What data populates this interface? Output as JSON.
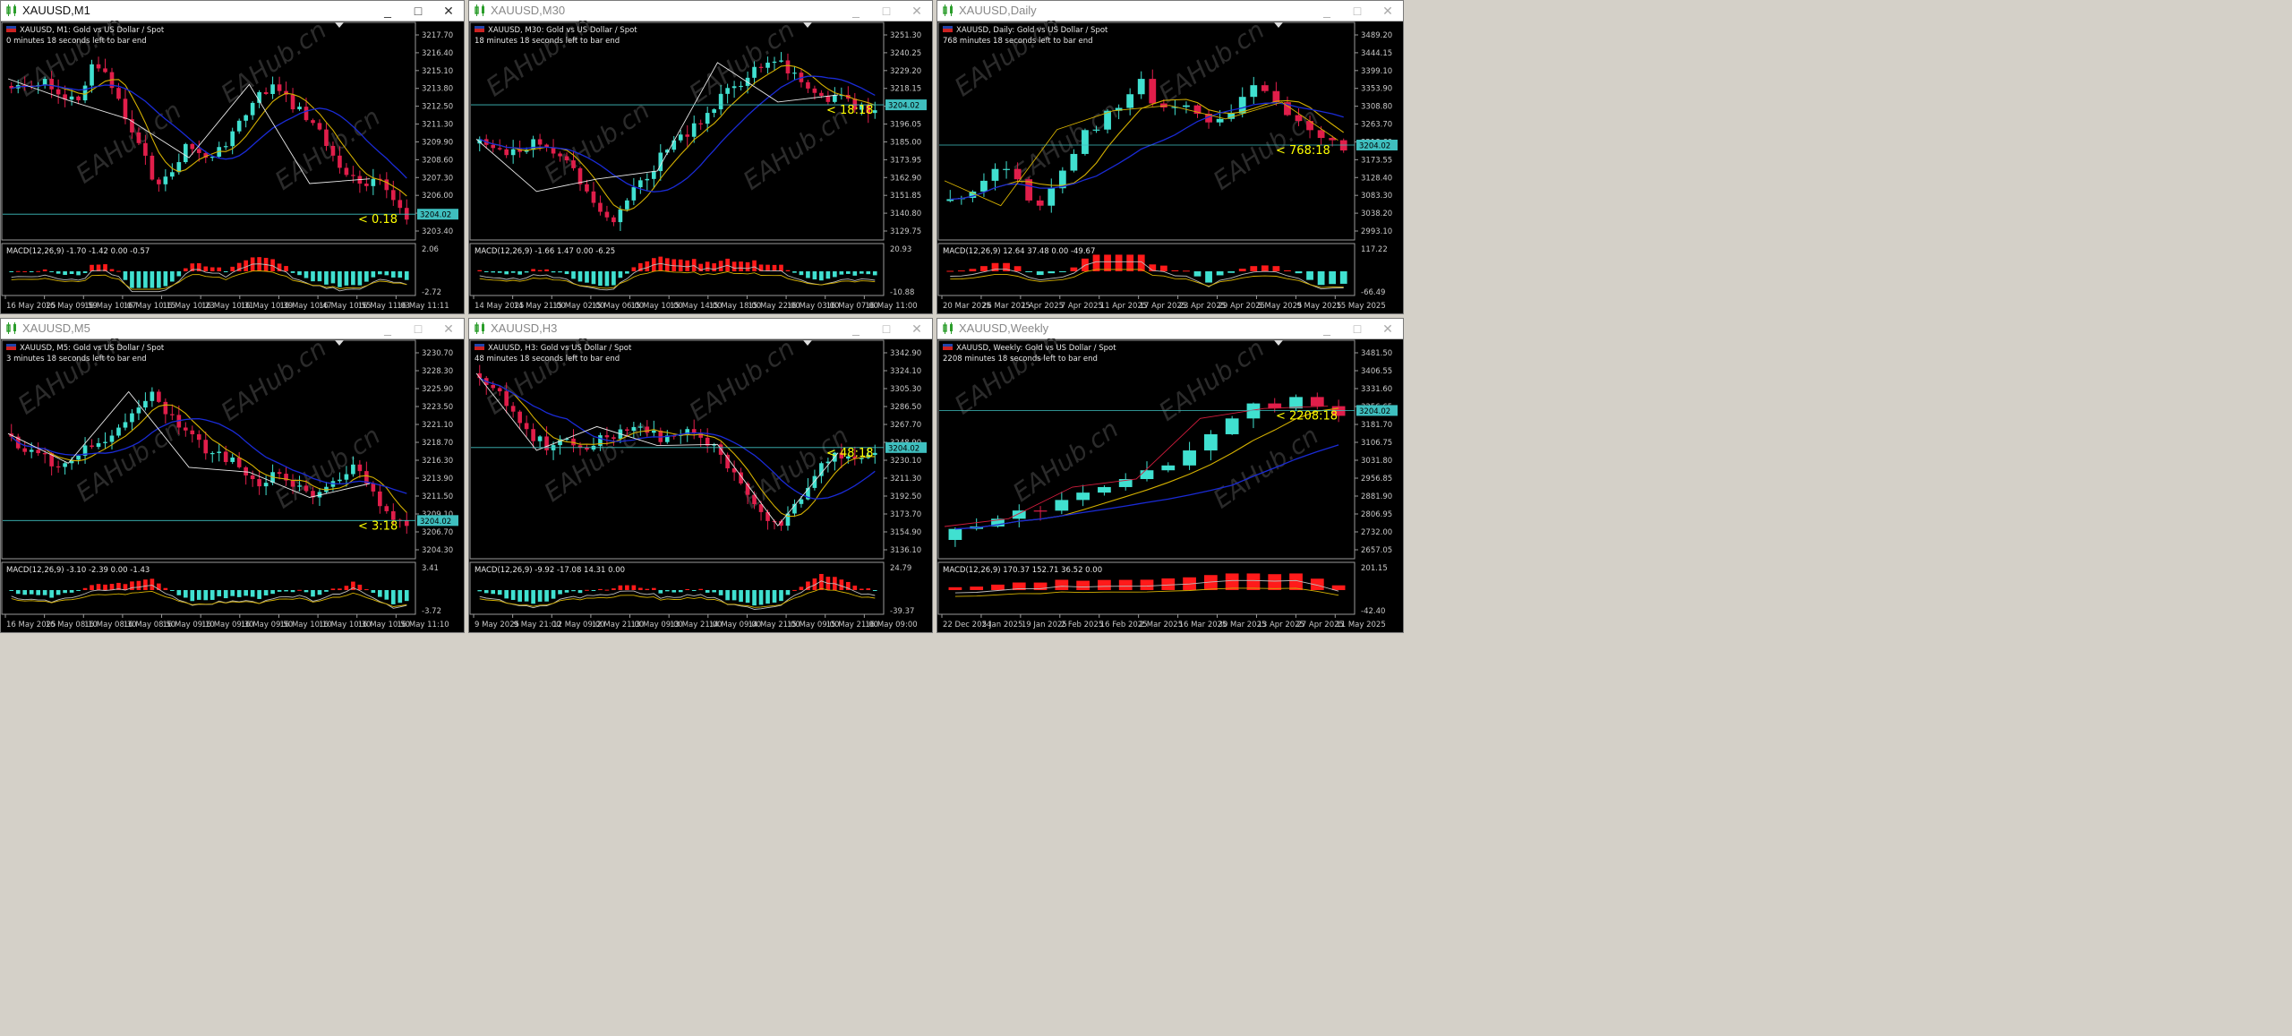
{
  "windows": [
    {
      "title": "XAUUSD,M1",
      "active": true,
      "controls": {
        "minimize": "_",
        "maximize": "□",
        "close": "✕"
      },
      "header_line1": "XAUUSD, M1:  Gold vs US Dollar / Spot",
      "header_line2": "0 minutes 18 seconds left to bar end",
      "countdown_label": "< 0.18",
      "price_tag": "3204.02",
      "price_scale": [
        "3217.70",
        "3216.40",
        "3215.10",
        "3213.80",
        "3212.50",
        "3211.30",
        "3209.90",
        "3208.60",
        "3207.30",
        "3206.00",
        "3204.70",
        "3203.40"
      ],
      "macd_header": "MACD(12,26,9) -1.70 -1.42 0.00 -0.57",
      "macd_scale": [
        "2.06",
        "-2.72"
      ],
      "time_axis": [
        "16 May 2025",
        "16 May 09:59",
        "16 May 10:07",
        "16 May 10:15",
        "16 May 10:23",
        "16 May 10:31",
        "16 May 10:39",
        "16 May 10:47",
        "16 May 10:55",
        "16 May 11:03",
        "16 May 11:11"
      ],
      "watermark": "EAHub.cn"
    },
    {
      "title": "XAUUSD,M30",
      "active": false,
      "controls": {
        "minimize": "_",
        "maximize": "□",
        "close": "✕"
      },
      "header_line1": "XAUUSD, M30:  Gold vs US Dollar / Spot",
      "header_line2": "18 minutes 18 seconds left to bar end",
      "countdown_label": "< 18:18",
      "price_tag": "3204.02",
      "price_scale": [
        "3251.30",
        "3240.25",
        "3229.20",
        "3218.15",
        "3207.10",
        "3196.05",
        "3185.00",
        "3173.95",
        "3162.90",
        "3151.85",
        "3140.80",
        "3129.75"
      ],
      "macd_header": "MACD(12,26,9) -1.66 1.47 0.00 -6.25",
      "macd_scale": [
        "20.93",
        "-10.88"
      ],
      "time_axis": [
        "14 May 2025",
        "14 May 21:00",
        "15 May 02:00",
        "15 May 06:00",
        "15 May 10:00",
        "15 May 14:00",
        "15 May 18:00",
        "15 May 22:00",
        "16 May 03:00",
        "16 May 07:00",
        "16 May 11:00"
      ],
      "watermark": "EAHub.cn"
    },
    {
      "title": "XAUUSD,Daily",
      "active": false,
      "controls": {
        "minimize": "_",
        "maximize": "□",
        "close": "✕"
      },
      "header_line1": "XAUUSD, Daily:  Gold vs US Dollar / Spot",
      "header_line2": "768 minutes 18 seconds left to bar end",
      "countdown_label": "< 768:18",
      "price_tag": "3204.02",
      "price_scale": [
        "3489.20",
        "3444.15",
        "3399.10",
        "3353.90",
        "3308.80",
        "3263.70",
        "3218.60",
        "3173.55",
        "3128.40",
        "3083.30",
        "3038.20",
        "2993.10"
      ],
      "macd_header": "MACD(12,26,9) 12.64 37.48 0.00 -49.67",
      "macd_scale": [
        "117.22",
        "-66.49"
      ],
      "time_axis": [
        "20 Mar 2025",
        "26 Mar 2025",
        "1 Apr 2025",
        "7 Apr 2025",
        "11 Apr 2025",
        "17 Apr 2025",
        "23 Apr 2025",
        "29 Apr 2025",
        "5 May 2025",
        "9 May 2025",
        "15 May 2025"
      ],
      "watermark": "EAHub.cn"
    },
    {
      "title": "XAUUSD,M5",
      "active": false,
      "controls": {
        "minimize": "_",
        "maximize": "□",
        "close": "✕"
      },
      "header_line1": "XAUUSD, M5:  Gold vs US Dollar / Spot",
      "header_line2": "3 minutes 18 seconds left to bar end",
      "countdown_label": "< 3:18",
      "price_tag": "3204.02",
      "price_scale": [
        "3230.70",
        "3228.30",
        "3225.90",
        "3223.50",
        "3221.10",
        "3218.70",
        "3216.30",
        "3213.90",
        "3211.50",
        "3209.10",
        "3206.70",
        "3204.30"
      ],
      "macd_header": "MACD(12,26,9) -3.10 -2.39 0.00 -1.43",
      "macd_scale": [
        "3.41",
        "-3.72"
      ],
      "time_axis": [
        "16 May 2025",
        "16 May 08:10",
        "16 May 08:30",
        "16 May 08:50",
        "16 May 09:10",
        "16 May 09:30",
        "16 May 09:50",
        "16 May 10:10",
        "16 May 10:30",
        "16 May 10:50",
        "16 May 11:10"
      ],
      "watermark": "EAHub.cn"
    },
    {
      "title": "XAUUSD,H3",
      "active": false,
      "controls": {
        "minimize": "_",
        "maximize": "□",
        "close": "✕"
      },
      "header_line1": "XAUUSD, H3:  Gold vs US Dollar / Spot",
      "header_line2": "48 minutes 18 seconds left to bar end",
      "countdown_label": "< 48:18",
      "price_tag": "3204.02",
      "price_scale": [
        "3342.90",
        "3324.10",
        "3305.30",
        "3286.50",
        "3267.70",
        "3248.90",
        "3230.10",
        "3211.30",
        "3192.50",
        "3173.70",
        "3154.90",
        "3136.10"
      ],
      "macd_header": "MACD(12,26,9) -9.92 -17.08 14.31 0.00",
      "macd_scale": [
        "24.79",
        "-39.37"
      ],
      "time_axis": [
        "9 May 2025",
        "9 May 21:00",
        "12 May 09:00",
        "12 May 21:00",
        "13 May 09:00",
        "13 May 21:00",
        "14 May 09:00",
        "14 May 21:00",
        "15 May 09:00",
        "15 May 21:00",
        "16 May 09:00"
      ],
      "watermark": "EAHub.cn"
    },
    {
      "title": "XAUUSD,Weekly",
      "active": false,
      "controls": {
        "minimize": "_",
        "maximize": "□",
        "close": "✕"
      },
      "header_line1": "XAUUSD, Weekly:  Gold vs US Dollar / Spot",
      "header_line2": "2208 minutes 18 seconds left to bar end",
      "countdown_label": "< 2208:18",
      "price_tag": "3204.02",
      "price_scale": [
        "3481.50",
        "3406.55",
        "3331.60",
        "3256.65",
        "3181.70",
        "3106.75",
        "3031.80",
        "2956.85",
        "2881.90",
        "2806.95",
        "2732.00",
        "2657.05"
      ],
      "macd_header": "MACD(12,26,9) 170.37 152.71 36.52 0.00",
      "macd_scale": [
        "201.15",
        "-42.40"
      ],
      "time_axis": [
        "22 Dec 2024",
        "5 Jan 2025",
        "19 Jan 2025",
        "2 Feb 2025",
        "16 Feb 2025",
        "2 Mar 2025",
        "16 Mar 2025",
        "30 Mar 2025",
        "13 Apr 2025",
        "27 Apr 2025",
        "11 May 2025"
      ],
      "watermark": "EAHub.cn"
    }
  ],
  "colors": {
    "bull": "#40e0d0",
    "bear": "#e01e4a",
    "grid_text": "#c8c8c8",
    "ma_fast": "#d4b000",
    "ma_slow": "#1a2bd6",
    "zigzag": "#e8e8e8",
    "countdown": "#ffff00",
    "macd_up": "#ff1a1a",
    "macd_down": "#40e0d0"
  }
}
